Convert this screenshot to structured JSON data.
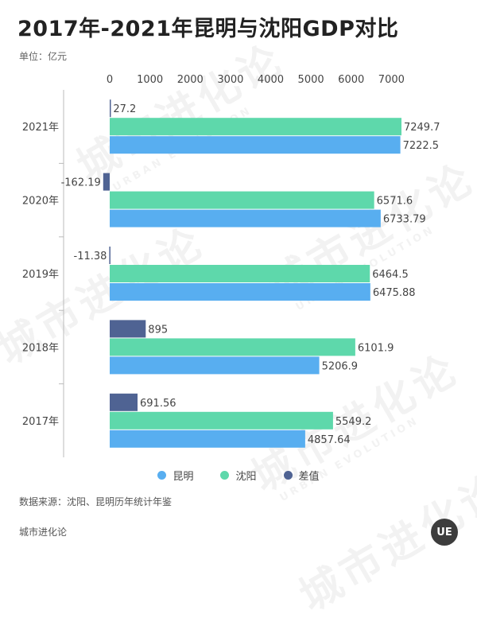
{
  "title": "2017年-2021年昆明与沈阳GDP对比",
  "unit": "单位：亿元",
  "chart_data": {
    "type": "bar",
    "orientation": "horizontal",
    "categories": [
      "2021年",
      "2020年",
      "2019年",
      "2018年",
      "2017年"
    ],
    "series": [
      {
        "name": "差值",
        "color": "#4f6393",
        "values": [
          27.2,
          -162.19,
          -11.38,
          895,
          691.56
        ],
        "labels": [
          "27.2",
          "-162.19",
          "-11.38",
          "895",
          "691.56"
        ]
      },
      {
        "name": "沈阳",
        "color": "#5ed8ab",
        "values": [
          7249.7,
          6571.6,
          6464.5,
          6101.9,
          5549.2
        ],
        "labels": [
          "7249.7",
          "6571.6",
          "6464.5",
          "6101.9",
          "5549.2"
        ]
      },
      {
        "name": "昆明",
        "color": "#58aef0",
        "values": [
          7222.5,
          6733.79,
          6475.88,
          5206.9,
          4857.64
        ],
        "labels": [
          "7222.5",
          "6733.79",
          "6475.88",
          "5206.9",
          "4857.64"
        ]
      }
    ],
    "xticks": [
      "0",
      "1000",
      "2000",
      "3000",
      "4000",
      "5000",
      "6000",
      "7000"
    ],
    "xlim": [
      0,
      7250
    ],
    "grid": false,
    "legend_position": "bottom",
    "legend_order": [
      "昆明",
      "沈阳",
      "差值"
    ]
  },
  "source": "数据来源：沈阳、昆明历年统计年鉴",
  "footer": "城市进化论",
  "logo_text": "UE",
  "watermark": {
    "cn": "城市进化论",
    "en": "URBAN EVOLUTION"
  }
}
